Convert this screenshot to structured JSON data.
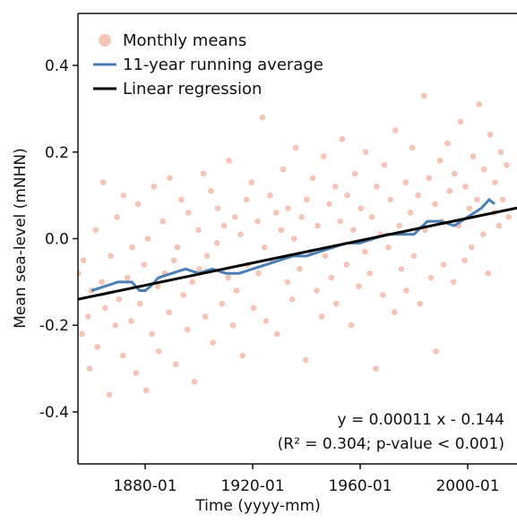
{
  "chart_data": {
    "type": "scatter",
    "xlabel": "Time (yyyy-mm)",
    "ylabel": "Mean sea-level (mNHN)",
    "xlim": [
      "1855-01",
      "2018-05"
    ],
    "xticks": [
      "1880-01",
      "1920-01",
      "1960-01",
      "2000-01"
    ],
    "ylim": [
      -0.52,
      0.52
    ],
    "yticks": [
      -0.4,
      -0.2,
      {
        "value": 0,
        "label": "0.0"
      },
      0.2,
      0.4
    ],
    "legend": "upper left",
    "annotations": [
      "y = 0.00011 x - 0.144",
      "(R² = 0.304; p-value < 0.001)"
    ],
    "series": [
      {
        "name": "Monthly means",
        "type": "scatter",
        "color": "#ec9f86",
        "x": [
          "1855-03",
          "1856-07",
          "1857-02",
          "1858-10",
          "1859-05",
          "1860-01",
          "1861-08",
          "1862-04",
          "1863-11",
          "1864-06",
          "1865-02",
          "1866-09",
          "1867-03",
          "1868-12",
          "1869-07",
          "1870-04",
          "1871-10",
          "1872-01",
          "1873-06",
          "1874-11",
          "1875-03",
          "1876-08",
          "1877-05",
          "1878-02",
          "1879-09",
          "1880-06",
          "1881-01",
          "1882-07",
          "1883-04",
          "1884-10",
          "1885-02",
          "1886-08",
          "1887-05",
          "1888-12",
          "1889-03",
          "1890-09",
          "1891-06",
          "1892-01",
          "1893-07",
          "1894-04",
          "1895-10",
          "1896-02",
          "1897-08",
          "1898-05",
          "1899-11",
          "1900-03",
          "1901-09",
          "1902-06",
          "1903-01",
          "1904-07",
          "1905-04",
          "1906-10",
          "1907-02",
          "1908-08",
          "1909-05",
          "1910-12",
          "1911-03",
          "1912-09",
          "1913-06",
          "1914-01",
          "1915-07",
          "1916-04",
          "1917-10",
          "1918-02",
          "1919-08",
          "1920-05",
          "1921-11",
          "1922-03",
          "1923-09",
          "1924-06",
          "1925-01",
          "1926-07",
          "1927-04",
          "1928-10",
          "1929-02",
          "1930-08",
          "1931-05",
          "1932-12",
          "1933-03",
          "1934-09",
          "1935-06",
          "1936-01",
          "1937-07",
          "1938-04",
          "1939-10",
          "1940-02",
          "1941-08",
          "1942-05",
          "1943-11",
          "1944-03",
          "1945-09",
          "1946-06",
          "1947-01",
          "1948-07",
          "1949-04",
          "1950-10",
          "1951-02",
          "1952-08",
          "1953-05",
          "1954-12",
          "1955-03",
          "1956-09",
          "1957-06",
          "1958-01",
          "1959-07",
          "1960-04",
          "1961-10",
          "1962-02",
          "1963-08",
          "1964-05",
          "1965-11",
          "1966-03",
          "1967-09",
          "1968-06",
          "1969-01",
          "1970-07",
          "1971-04",
          "1972-10",
          "1973-02",
          "1974-08",
          "1975-05",
          "1976-12",
          "1977-03",
          "1978-09",
          "1979-06",
          "1980-01",
          "1981-07",
          "1982-04",
          "1983-10",
          "1984-02",
          "1985-08",
          "1986-05",
          "1987-11",
          "1988-03",
          "1989-09",
          "1990-06",
          "1991-01",
          "1992-07",
          "1993-04",
          "1994-10",
          "1995-02",
          "1996-08",
          "1997-05",
          "1998-12",
          "1999-03",
          "2000-09",
          "2001-06",
          "2002-01",
          "2003-07",
          "2004-04",
          "2005-10",
          "2006-02",
          "2007-08",
          "2008-05",
          "2009-11",
          "2010-03",
          "2011-09",
          "2012-06",
          "2013-01",
          "2014-07",
          "2015-04"
        ],
        "values": [
          -0.08,
          -0.22,
          -0.05,
          -0.18,
          -0.3,
          -0.12,
          0.02,
          -0.25,
          -0.1,
          0.13,
          -0.16,
          -0.36,
          -0.04,
          -0.2,
          0.05,
          -0.14,
          -0.27,
          0.1,
          -0.09,
          -0.19,
          -0.02,
          -0.31,
          0.08,
          -0.15,
          -0.06,
          -0.35,
          0.0,
          -0.22,
          0.12,
          -0.11,
          -0.26,
          0.04,
          -0.08,
          -0.17,
          0.14,
          -0.05,
          -0.29,
          -0.02,
          0.09,
          -0.13,
          -0.21,
          0.06,
          -0.1,
          -0.33,
          0.02,
          -0.07,
          0.15,
          -0.18,
          -0.04,
          0.11,
          -0.24,
          -0.01,
          0.07,
          -0.15,
          0.03,
          -0.09,
          0.18,
          -0.2,
          0.05,
          -0.12,
          0.01,
          -0.27,
          0.09,
          -0.06,
          0.13,
          -0.16,
          0.04,
          -0.08,
          0.28,
          -0.02,
          -0.19,
          0.1,
          -0.05,
          0.06,
          -0.22,
          0.02,
          0.16,
          -0.1,
          0.07,
          -0.14,
          0.0,
          0.21,
          -0.07,
          0.05,
          -0.28,
          0.09,
          -0.03,
          0.14,
          -0.12,
          0.03,
          -0.18,
          0.19,
          -0.04,
          0.08,
          -0.09,
          0.12,
          -0.15,
          0.04,
          0.23,
          -0.06,
          0.1,
          -0.2,
          0.02,
          0.15,
          -0.11,
          0.07,
          -0.03,
          0.2,
          -0.08,
          0.05,
          -0.3,
          0.12,
          0.01,
          -0.13,
          0.17,
          -0.02,
          0.09,
          -0.17,
          0.25,
          0.03,
          -0.07,
          0.13,
          -0.12,
          0.06,
          0.21,
          -0.04,
          0.1,
          -0.15,
          0.33,
          0.02,
          0.14,
          -0.09,
          0.08,
          -0.26,
          0.18,
          0.04,
          -0.06,
          0.22,
          0.11,
          -0.1,
          0.15,
          0.03,
          0.27,
          -0.05,
          0.12,
          0.07,
          -0.02,
          0.19,
          0.09,
          0.31,
          0.01,
          0.16,
          -0.08,
          0.24,
          0.06,
          0.13,
          0.03,
          0.2,
          0.09,
          0.17,
          0.05
        ]
      },
      {
        "name": "11-year running average",
        "type": "line",
        "color": "#4a7fb5",
        "x": [
          "1860-01",
          "1865-01",
          "1870-01",
          "1875-01",
          "1878-01",
          "1880-01",
          "1882-01",
          "1885-01",
          "1890-01",
          "1895-01",
          "1900-01",
          "1905-01",
          "1910-01",
          "1915-01",
          "1920-01",
          "1925-01",
          "1930-01",
          "1935-01",
          "1940-01",
          "1945-01",
          "1950-01",
          "1955-01",
          "1960-01",
          "1965-01",
          "1970-01",
          "1975-01",
          "1980-01",
          "1985-01",
          "1990-01",
          "1995-01",
          "2000-01",
          "2005-01",
          "2008-01",
          "2010-01"
        ],
        "values": [
          -0.12,
          -0.11,
          -0.1,
          -0.1,
          -0.12,
          -0.12,
          -0.11,
          -0.09,
          -0.08,
          -0.07,
          -0.08,
          -0.07,
          -0.08,
          -0.08,
          -0.07,
          -0.06,
          -0.05,
          -0.04,
          -0.04,
          -0.03,
          -0.02,
          -0.01,
          -0.01,
          0.0,
          0.01,
          0.01,
          0.01,
          0.04,
          0.04,
          0.03,
          0.05,
          0.07,
          0.09,
          0.08
        ]
      },
      {
        "name": "Linear regression",
        "type": "line",
        "color": "#000000",
        "x": [
          "1855-01",
          "2018-05"
        ],
        "values": [
          -0.14,
          0.071
        ]
      }
    ]
  }
}
